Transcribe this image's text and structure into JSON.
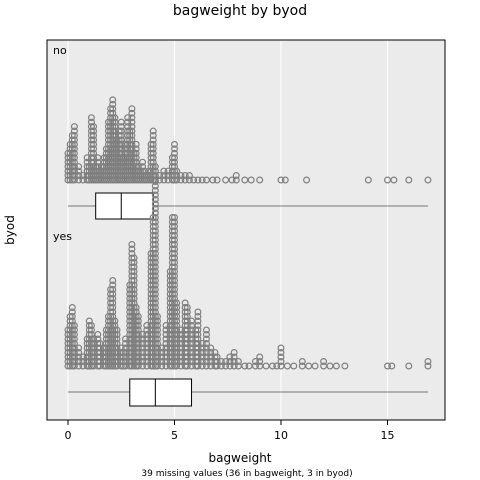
{
  "chart_data": {
    "type": "dotplot-boxplot",
    "title": "bagweight by byod",
    "xlabel": "bagweight",
    "ylabel": "byod",
    "footnote": "39 missing values (36 in bagweight, 3 in byod)",
    "xlim": [
      -0.8,
      17.8
    ],
    "xticks": [
      0,
      5,
      10,
      15
    ],
    "grid": true,
    "groups": [
      {
        "label": "no",
        "box": {
          "min": 0,
          "q1": 1.3,
          "median": 2.5,
          "q3": 4.0,
          "max": 16.9
        },
        "dot_counts": [
          [
            0.0,
            7
          ],
          [
            0.1,
            9
          ],
          [
            0.2,
            11
          ],
          [
            0.3,
            13
          ],
          [
            0.5,
            4
          ],
          [
            0.7,
            2
          ],
          [
            0.9,
            6
          ],
          [
            1.0,
            4
          ],
          [
            1.1,
            15
          ],
          [
            1.2,
            13
          ],
          [
            1.3,
            4
          ],
          [
            1.4,
            6
          ],
          [
            1.5,
            3
          ],
          [
            1.6,
            4
          ],
          [
            1.7,
            6
          ],
          [
            1.8,
            8
          ],
          [
            1.9,
            14
          ],
          [
            2.0,
            17
          ],
          [
            2.1,
            19
          ],
          [
            2.2,
            15
          ],
          [
            2.3,
            10
          ],
          [
            2.4,
            12
          ],
          [
            2.5,
            14
          ],
          [
            2.6,
            6
          ],
          [
            2.7,
            9
          ],
          [
            2.8,
            15
          ],
          [
            2.9,
            12
          ],
          [
            3.0,
            17
          ],
          [
            3.1,
            7
          ],
          [
            3.2,
            9
          ],
          [
            3.3,
            4
          ],
          [
            3.4,
            3
          ],
          [
            3.5,
            5
          ],
          [
            3.6,
            3
          ],
          [
            3.7,
            2
          ],
          [
            3.8,
            3
          ],
          [
            3.9,
            9
          ],
          [
            4.0,
            12
          ],
          [
            4.1,
            4
          ],
          [
            4.3,
            2
          ],
          [
            4.5,
            3
          ],
          [
            4.7,
            3
          ],
          [
            4.9,
            6
          ],
          [
            5.0,
            9
          ],
          [
            5.1,
            3
          ],
          [
            5.3,
            2
          ],
          [
            5.5,
            2
          ],
          [
            5.7,
            2
          ],
          [
            5.9,
            1
          ],
          [
            6.1,
            1
          ],
          [
            6.3,
            1
          ],
          [
            6.5,
            1
          ],
          [
            6.8,
            1
          ],
          [
            7.0,
            1
          ],
          [
            7.4,
            1
          ],
          [
            7.7,
            1
          ],
          [
            7.9,
            2
          ],
          [
            8.3,
            1
          ],
          [
            8.6,
            1
          ],
          [
            9.0,
            1
          ],
          [
            10.0,
            1
          ],
          [
            10.2,
            1
          ],
          [
            11.2,
            1
          ],
          [
            14.1,
            1
          ],
          [
            15.0,
            1
          ],
          [
            15.3,
            1
          ],
          [
            16.0,
            1
          ],
          [
            16.9,
            1
          ]
        ]
      },
      {
        "label": "yes",
        "box": {
          "min": 0,
          "q1": 2.9,
          "median": 4.1,
          "q3": 5.8,
          "max": 16.9
        },
        "dot_counts": [
          [
            0.0,
            9
          ],
          [
            0.1,
            12
          ],
          [
            0.2,
            14
          ],
          [
            0.3,
            10
          ],
          [
            0.5,
            5
          ],
          [
            0.7,
            3
          ],
          [
            0.9,
            7
          ],
          [
            1.0,
            11
          ],
          [
            1.1,
            10
          ],
          [
            1.2,
            7
          ],
          [
            1.4,
            8
          ],
          [
            1.5,
            6
          ],
          [
            1.7,
            5
          ],
          [
            1.8,
            9
          ],
          [
            1.9,
            12
          ],
          [
            2.0,
            18
          ],
          [
            2.1,
            20
          ],
          [
            2.2,
            11
          ],
          [
            2.3,
            9
          ],
          [
            2.5,
            5
          ],
          [
            2.6,
            4
          ],
          [
            2.7,
            7
          ],
          [
            2.9,
            19
          ],
          [
            3.0,
            28
          ],
          [
            3.1,
            25
          ],
          [
            3.2,
            14
          ],
          [
            3.3,
            12
          ],
          [
            3.5,
            8
          ],
          [
            3.7,
            10
          ],
          [
            3.9,
            26
          ],
          [
            4.0,
            34
          ],
          [
            4.1,
            42
          ],
          [
            4.2,
            12
          ],
          [
            4.4,
            5
          ],
          [
            4.6,
            10
          ],
          [
            4.8,
            22
          ],
          [
            4.9,
            34
          ],
          [
            5.0,
            34
          ],
          [
            5.1,
            15
          ],
          [
            5.3,
            9
          ],
          [
            5.5,
            15
          ],
          [
            5.6,
            14
          ],
          [
            5.8,
            11
          ],
          [
            6.0,
            9
          ],
          [
            6.1,
            13
          ],
          [
            6.3,
            6
          ],
          [
            6.5,
            9
          ],
          [
            6.7,
            5
          ],
          [
            6.9,
            4
          ],
          [
            7.0,
            3
          ],
          [
            7.2,
            2
          ],
          [
            7.4,
            2
          ],
          [
            7.6,
            3
          ],
          [
            7.8,
            4
          ],
          [
            8.0,
            2
          ],
          [
            8.3,
            1
          ],
          [
            8.5,
            1
          ],
          [
            8.8,
            2
          ],
          [
            9.0,
            3
          ],
          [
            9.3,
            1
          ],
          [
            9.6,
            1
          ],
          [
            9.8,
            1
          ],
          [
            10.0,
            5
          ],
          [
            10.3,
            1
          ],
          [
            10.6,
            1
          ],
          [
            11.0,
            2
          ],
          [
            11.3,
            1
          ],
          [
            11.6,
            1
          ],
          [
            12.0,
            2
          ],
          [
            12.3,
            1
          ],
          [
            12.6,
            1
          ],
          [
            13.0,
            1
          ],
          [
            15.0,
            1
          ],
          [
            15.2,
            1
          ],
          [
            16.0,
            1
          ],
          [
            16.9,
            2
          ]
        ]
      }
    ]
  }
}
